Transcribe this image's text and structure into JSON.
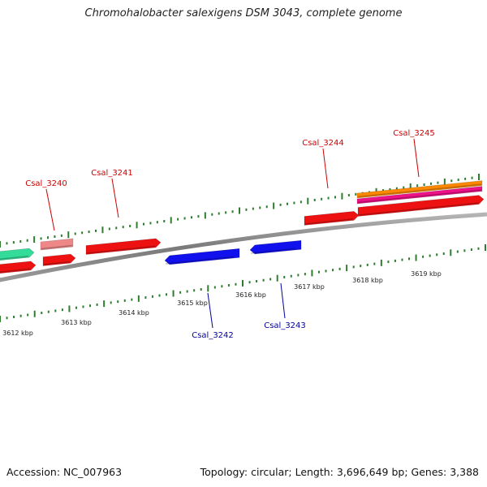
{
  "title": "Chromohalobacter salexigens DSM 3043, complete genome",
  "footer": {
    "accession": "Accession: NC_007963",
    "summary": "Topology: circular; Length: 3,696,649 bp; Genes: 3,388"
  },
  "colors": {
    "backbone": "#8a8a8a",
    "tick": "#2e7d2e",
    "forward_label": "#cc0000",
    "reverse_label": "#000099"
  },
  "kbp_ticks": [
    {
      "label": "3612 kbp"
    },
    {
      "label": "3613 kbp"
    },
    {
      "label": "3614 kbp"
    },
    {
      "label": "3615 kbp"
    },
    {
      "label": "3616 kbp"
    },
    {
      "label": "3617 kbp"
    },
    {
      "label": "3618 kbp"
    },
    {
      "label": "3619 kbp"
    }
  ],
  "genes": [
    {
      "name": "",
      "strand": "+",
      "color": "#33dd99"
    },
    {
      "name": "",
      "strand": "+",
      "color": "#ee1111"
    },
    {
      "name": "Csal_3240",
      "strand": "+",
      "color": "#ee8888"
    },
    {
      "name": "",
      "strand": "+",
      "color": "#ee1111"
    },
    {
      "name": "Csal_3241",
      "strand": "+",
      "color": "#ee1111"
    },
    {
      "name": "Csal_3242",
      "strand": "-",
      "color": "#1111ee"
    },
    {
      "name": "Csal_3243",
      "strand": "-",
      "color": "#1111ee"
    },
    {
      "name": "Csal_3244",
      "strand": "+",
      "color": "#ee1111"
    },
    {
      "name": "Csal_3245",
      "strand": "+",
      "color": "#ee1111"
    },
    {
      "name": "",
      "strand": "+",
      "color": "#ff8800"
    },
    {
      "name": "",
      "strand": "+",
      "color": "#ee1188"
    }
  ]
}
